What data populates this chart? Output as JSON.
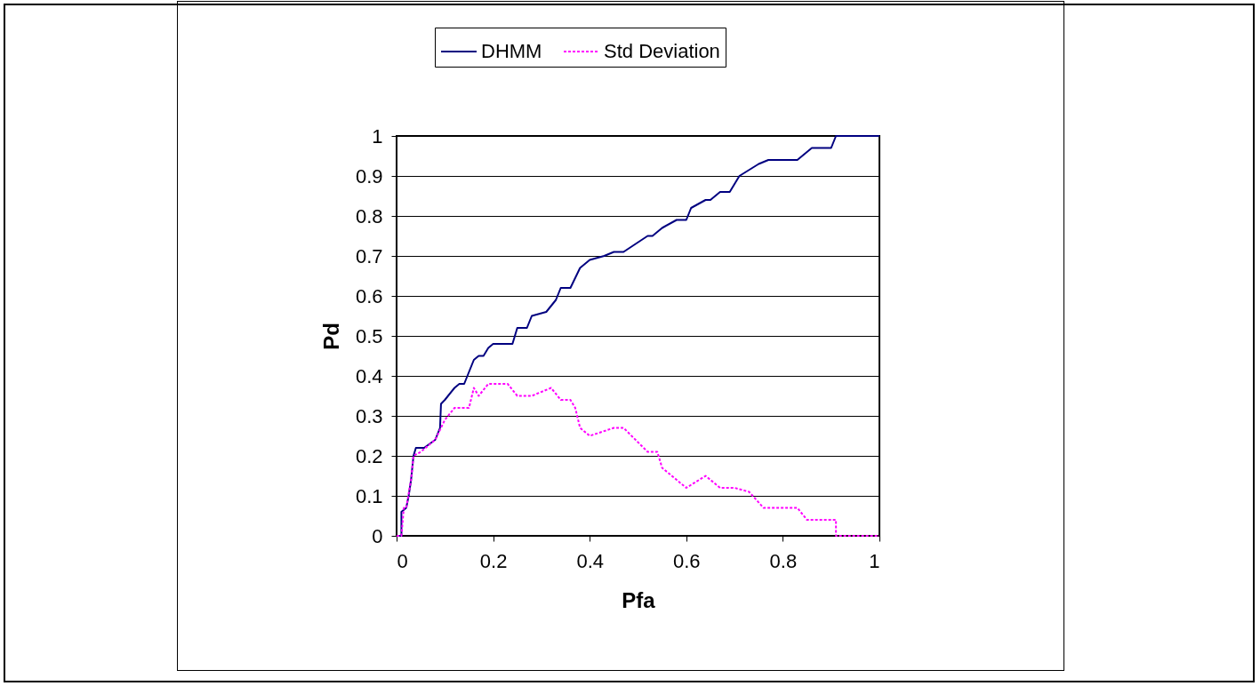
{
  "chart_data": {
    "type": "line",
    "xlabel": "Pfa",
    "ylabel": "Pd",
    "xlim": [
      0,
      1
    ],
    "ylim": [
      0,
      1
    ],
    "xticks": [
      0,
      0.2,
      0.4,
      0.6,
      0.8,
      1
    ],
    "yticks": [
      0,
      0.1,
      0.2,
      0.3,
      0.4,
      0.5,
      0.6,
      0.7,
      0.8,
      0.9,
      1
    ],
    "grid": "y",
    "legend": "top",
    "marker": "none",
    "series": [
      {
        "name": "DHMM",
        "color": "#000080",
        "line_style": "solid",
        "x": [
          0,
          0.01,
          0.01,
          0.02,
          0.025,
          0.03,
          0.035,
          0.04,
          0.057,
          0.08,
          0.09,
          0.092,
          0.1,
          0.12,
          0.13,
          0.14,
          0.16,
          0.17,
          0.18,
          0.19,
          0.2,
          0.24,
          0.25,
          0.27,
          0.28,
          0.31,
          0.33,
          0.34,
          0.36,
          0.38,
          0.4,
          0.43,
          0.45,
          0.47,
          0.52,
          0.53,
          0.55,
          0.58,
          0.6,
          0.61,
          0.64,
          0.65,
          0.67,
          0.69,
          0.71,
          0.75,
          0.77,
          0.83,
          0.85,
          0.86,
          0.9,
          0.91,
          1
        ],
        "values": [
          0,
          0,
          0.06,
          0.07,
          0.1,
          0.14,
          0.2,
          0.22,
          0.22,
          0.24,
          0.27,
          0.33,
          0.34,
          0.37,
          0.38,
          0.38,
          0.44,
          0.45,
          0.45,
          0.47,
          0.48,
          0.48,
          0.52,
          0.52,
          0.55,
          0.56,
          0.59,
          0.62,
          0.62,
          0.67,
          0.69,
          0.7,
          0.71,
          0.71,
          0.75,
          0.75,
          0.77,
          0.79,
          0.79,
          0.82,
          0.84,
          0.84,
          0.86,
          0.86,
          0.9,
          0.93,
          0.94,
          0.94,
          0.96,
          0.97,
          0.97,
          1,
          1
        ]
      },
      {
        "name": "Std Deviation",
        "color": "#ff00ff",
        "line_style": "dotted",
        "x": [
          0,
          0.01,
          0.015,
          0.02,
          0.03,
          0.035,
          0.05,
          0.08,
          0.1,
          0.12,
          0.15,
          0.16,
          0.17,
          0.19,
          0.23,
          0.25,
          0.28,
          0.32,
          0.34,
          0.36,
          0.37,
          0.38,
          0.4,
          0.45,
          0.47,
          0.52,
          0.54,
          0.55,
          0.58,
          0.6,
          0.64,
          0.67,
          0.7,
          0.73,
          0.76,
          0.83,
          0.85,
          0.91,
          0.91,
          1
        ],
        "values": [
          0,
          0,
          0.07,
          0.07,
          0.14,
          0.2,
          0.21,
          0.24,
          0.29,
          0.32,
          0.32,
          0.37,
          0.35,
          0.38,
          0.38,
          0.35,
          0.35,
          0.37,
          0.34,
          0.34,
          0.32,
          0.27,
          0.25,
          0.27,
          0.27,
          0.21,
          0.21,
          0.17,
          0.14,
          0.12,
          0.15,
          0.12,
          0.12,
          0.11,
          0.07,
          0.07,
          0.04,
          0.04,
          0,
          0
        ]
      }
    ]
  }
}
